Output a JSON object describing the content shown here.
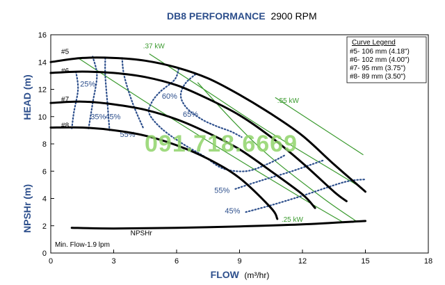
{
  "title_bold": "DB8 PERFORMANCE",
  "title_rest": "2900 RPM",
  "watermark": "091.718.6669",
  "colors": {
    "axis_text": "#2d4f8c",
    "power": "#3a9a2e",
    "efficiency": "#2d4f8c",
    "curve": "#000000"
  },
  "chart_data": {
    "type": "line",
    "xlabel": "FLOW",
    "xlabel_unit": "(m³/hr)",
    "ylabel_head": "HEAD (m)",
    "ylabel_npsh": "NPSHr (m)",
    "xlim": [
      0,
      18
    ],
    "ylim": [
      0,
      16
    ],
    "x_ticks": [
      "0",
      "3",
      "6",
      "9",
      "12",
      "15",
      "18"
    ],
    "y_ticks": [
      "0",
      "2",
      "4",
      "6",
      "8",
      "10",
      "12",
      "14",
      "16"
    ],
    "grid": false,
    "legend_position": "top-right",
    "legend": {
      "title": "Curve Legend",
      "entries": [
        "#5- 106 mm (4.18\")",
        "#6- 102 mm (4.00\")",
        "#7- 95 mm (3.75\")",
        "#8- 89 mm (3.50\")"
      ]
    },
    "series": [
      {
        "name": "#5",
        "points": [
          [
            0,
            14.0
          ],
          [
            1.5,
            14.3
          ],
          [
            3,
            14.3
          ],
          [
            4.5,
            14.1
          ],
          [
            6,
            13.6
          ],
          [
            7.5,
            12.8
          ],
          [
            9,
            11.6
          ],
          [
            10.5,
            10.2
          ],
          [
            12,
            8.6
          ],
          [
            13.5,
            6.5
          ],
          [
            15,
            4.5
          ]
        ]
      },
      {
        "name": "#6",
        "points": [
          [
            0,
            13.2
          ],
          [
            1.5,
            13.3
          ],
          [
            3,
            13.2
          ],
          [
            4.5,
            12.9
          ],
          [
            6,
            12.3
          ],
          [
            7.5,
            11.3
          ],
          [
            9,
            10.1
          ],
          [
            10.5,
            8.5
          ],
          [
            12,
            6.6
          ],
          [
            13.5,
            4.5
          ],
          [
            14.1,
            3.8
          ]
        ]
      },
      {
        "name": "#7",
        "points": [
          [
            0,
            11.0
          ],
          [
            1.5,
            11.1
          ],
          [
            3,
            10.9
          ],
          [
            4.5,
            10.5
          ],
          [
            6,
            9.8
          ],
          [
            7.5,
            8.8
          ],
          [
            9,
            7.6
          ],
          [
            10.5,
            6.0
          ],
          [
            12,
            4.3
          ],
          [
            12.6,
            3.3
          ]
        ]
      },
      {
        "name": "#8",
        "points": [
          [
            0,
            9.2
          ],
          [
            1.5,
            9.2
          ],
          [
            3,
            9.0
          ],
          [
            4.5,
            8.6
          ],
          [
            6,
            7.9
          ],
          [
            7.5,
            6.9
          ],
          [
            9,
            5.5
          ],
          [
            10.5,
            3.3
          ],
          [
            10.8,
            2.5
          ]
        ]
      },
      {
        "name": "NPSHr",
        "points": [
          [
            1,
            1.85
          ],
          [
            3,
            1.8
          ],
          [
            6,
            1.85
          ],
          [
            9,
            1.95
          ],
          [
            12,
            2.1
          ],
          [
            15,
            2.35
          ]
        ]
      }
    ],
    "curve_labels": [
      {
        "text": "#5",
        "x": 0.3,
        "y": 14.6
      },
      {
        "text": "#6",
        "x": 0.3,
        "y": 13.2
      },
      {
        "text": "#7",
        "x": 0.3,
        "y": 11.1
      },
      {
        "text": "#8",
        "x": 0.3,
        "y": 9.2
      },
      {
        "text": "NPSHr",
        "x": 3.6,
        "y": 1.3
      }
    ],
    "efficiency_lines": [
      {
        "label": "25%",
        "label_x": 1.4,
        "label_y": 12.2,
        "points": [
          [
            1.2,
            13.3
          ],
          [
            1.3,
            12.0
          ],
          [
            1.1,
            10.3
          ],
          [
            1.0,
            9.1
          ]
        ]
      },
      {
        "label": "35%",
        "label_x": 1.9,
        "label_y": 9.8,
        "points": [
          [
            2.0,
            14.4
          ],
          [
            2.2,
            13.0
          ],
          [
            2.0,
            11.0
          ],
          [
            1.8,
            9.1
          ]
        ]
      },
      {
        "label": "45%",
        "label_x": 2.6,
        "label_y": 9.8,
        "points": [
          [
            2.6,
            14.3
          ],
          [
            2.6,
            13.0
          ],
          [
            2.7,
            11.0
          ],
          [
            2.8,
            9.0
          ]
        ]
      },
      {
        "label": "55%",
        "label_x": 3.3,
        "label_y": 8.5,
        "points": [
          [
            3.4,
            14.3
          ],
          [
            3.5,
            13.0
          ],
          [
            3.9,
            11.0
          ],
          [
            4.4,
            9.2
          ]
        ]
      },
      {
        "label": "60%",
        "label_x": 5.3,
        "label_y": 11.3,
        "points": [
          [
            6.1,
            13.5
          ],
          [
            5.9,
            12.7
          ],
          [
            5.2,
            11.8
          ],
          [
            4.8,
            11.0
          ],
          [
            4.7,
            10.2
          ],
          [
            5.3,
            9.1
          ],
          [
            6.3,
            8.0
          ],
          [
            7.3,
            7.1
          ],
          [
            8.2,
            6.2
          ],
          [
            9.3,
            6.0
          ],
          [
            10.3,
            6.5
          ],
          [
            11.2,
            7.2
          ]
        ]
      },
      {
        "label": "65%",
        "label_x": 6.3,
        "label_y": 10.0,
        "points": [
          [
            6.9,
            13.1
          ],
          [
            6.4,
            12.4
          ],
          [
            6.2,
            11.5
          ],
          [
            6.5,
            10.6
          ],
          [
            7.2,
            9.8
          ],
          [
            7.9,
            9.3
          ],
          [
            8.6,
            8.9
          ],
          [
            9.1,
            8.5
          ]
        ]
      },
      {
        "label": "55%",
        "label_x": 7.8,
        "label_y": 4.4,
        "points": [
          [
            8.8,
            4.7
          ],
          [
            10.0,
            5.3
          ],
          [
            11.5,
            6.0
          ],
          [
            13.0,
            6.8
          ]
        ]
      },
      {
        "label": "45%",
        "label_x": 8.3,
        "label_y": 2.9,
        "points": [
          [
            9.3,
            3.0
          ],
          [
            10.5,
            3.5
          ],
          [
            12.0,
            4.2
          ],
          [
            14.0,
            5.2
          ],
          [
            15.0,
            5.4
          ]
        ]
      }
    ],
    "power_lines": [
      {
        "label": ".37 kW",
        "label_x": 4.4,
        "label_y": 15.0,
        "points": [
          [
            1.3,
            14.3
          ],
          [
            4.3,
            11.3
          ],
          [
            7.5,
            8.2
          ],
          [
            12.0,
            4.0
          ],
          [
            14.0,
            2.2
          ]
        ]
      },
      {
        "label": ".55 kW",
        "label_x": 10.8,
        "label_y": 11.0,
        "points": [
          [
            4.7,
            14.6
          ],
          [
            7.5,
            11.8
          ],
          [
            10.5,
            8.8
          ],
          [
            14.8,
            4.8
          ]
        ]
      },
      {
        "label": ".25 kW",
        "label_x": 11.0,
        "label_y": 2.3,
        "points": [
          [
            7.0,
            12.5
          ],
          [
            8.8,
            9.5
          ],
          [
            10.5,
            7.0
          ],
          [
            13.0,
            4.0
          ],
          [
            14.6,
            2.3
          ]
        ]
      },
      {
        "label": "",
        "points": [
          [
            10.7,
            11.4
          ],
          [
            14.9,
            7.2
          ]
        ]
      }
    ]
  },
  "notes": {
    "min_flow": "Min. Flow-1.9 lpm"
  }
}
